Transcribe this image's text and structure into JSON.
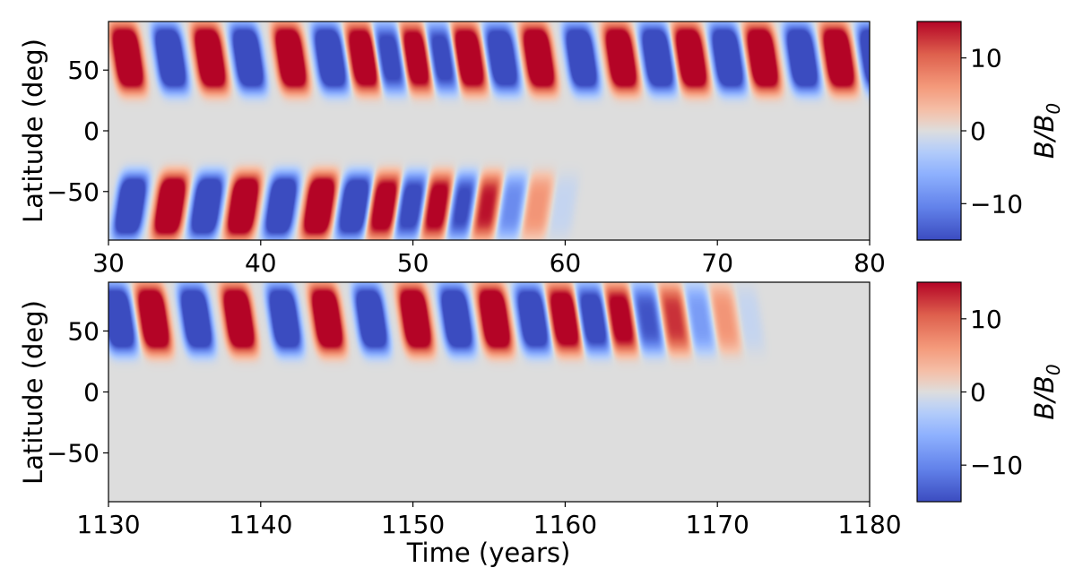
{
  "chart_data": [
    {
      "type": "heatmap",
      "title": "",
      "xlabel": "",
      "ylabel": "Latitude (deg)",
      "xlim": [
        30,
        80
      ],
      "ylim": [
        -90,
        90
      ],
      "x_ticks": [
        30,
        40,
        50,
        60,
        70,
        80
      ],
      "y_ticks": [
        -50,
        0,
        50
      ],
      "y_tick_labels": [
        "−50",
        "0",
        "50"
      ],
      "colorbar": {
        "label": "B/B0",
        "label_main": "B/B",
        "label_sub": "0",
        "range": [
          -15,
          15
        ],
        "ticks": [
          -10,
          0,
          10
        ],
        "tick_labels": [
          "−10",
          "0",
          "10"
        ],
        "colormap": "coolwarm",
        "colors": {
          "low": "#3b4cc0",
          "mid": "#dddddd",
          "high": "#b40426"
        }
      },
      "bands": [
        {
          "hemisphere": "north",
          "times": [
            30.9,
            33.7,
            36.3,
            38.8,
            41.6,
            44.2,
            46.4,
            48.1,
            49.9,
            51.5,
            53.3,
            55.5,
            57.9,
            60.7,
            63.3,
            65.7,
            67.9,
            70.3,
            72.6,
            75.2,
            77.6,
            80.0
          ],
          "signs": [
            1,
            -1,
            1,
            -1,
            1,
            -1,
            1,
            -1,
            1,
            -1,
            1,
            -1,
            1,
            -1,
            1,
            -1,
            1,
            -1,
            1,
            -1,
            1,
            -1
          ],
          "amplitudes": [
            15,
            15,
            15,
            15,
            15,
            15,
            14,
            11,
            13,
            11,
            14,
            14,
            15,
            15,
            15,
            15,
            15,
            15,
            15,
            15,
            15,
            15
          ]
        },
        {
          "hemisphere": "south",
          "times": [
            31.1,
            33.7,
            36.1,
            38.5,
            41.0,
            43.5,
            45.8,
            47.8,
            49.5,
            51.3,
            52.9,
            54.5,
            56.1,
            57.8,
            59.4
          ],
          "signs": [
            -1,
            1,
            -1,
            1,
            -1,
            1,
            -1,
            1,
            -1,
            1,
            -1,
            1,
            -1,
            1,
            -1
          ],
          "amplitudes": [
            15,
            15,
            15,
            15,
            15,
            15,
            14,
            12,
            11,
            11,
            10,
            9,
            6,
            4,
            1
          ]
        }
      ]
    },
    {
      "type": "heatmap",
      "title": "",
      "xlabel": "Time (years)",
      "ylabel": "Latitude (deg)",
      "xlim": [
        1130,
        1180
      ],
      "ylim": [
        -90,
        90
      ],
      "x_ticks": [
        1130,
        1140,
        1150,
        1160,
        1170,
        1180
      ],
      "y_ticks": [
        -50,
        0,
        50
      ],
      "y_tick_labels": [
        "−50",
        "0",
        "50"
      ],
      "colorbar": {
        "label": "B/B0",
        "label_main": "B/B",
        "label_sub": "0",
        "range": [
          -15,
          15
        ],
        "ticks": [
          -10,
          0,
          10
        ],
        "tick_labels": [
          "−10",
          "0",
          "10"
        ],
        "colormap": "coolwarm",
        "colors": {
          "low": "#3b4cc0",
          "mid": "#dddddd",
          "high": "#b40426"
        }
      },
      "bands": [
        {
          "hemisphere": "north",
          "times": [
            1130.3,
            1132.6,
            1135.4,
            1138.2,
            1141.2,
            1144.0,
            1146.9,
            1149.8,
            1152.5,
            1155.0,
            1157.5,
            1159.6,
            1161.5,
            1163.3,
            1165.1,
            1166.8,
            1168.5,
            1170.1,
            1171.6
          ],
          "signs": [
            -1,
            1,
            -1,
            1,
            -1,
            1,
            -1,
            1,
            -1,
            1,
            -1,
            1,
            -1,
            1,
            -1,
            1,
            -1,
            1,
            -1
          ],
          "amplitudes": [
            15,
            15,
            15,
            15,
            15,
            15,
            15,
            15,
            15,
            15,
            14,
            13,
            12,
            11,
            9,
            8,
            5,
            4,
            1
          ]
        }
      ]
    }
  ]
}
